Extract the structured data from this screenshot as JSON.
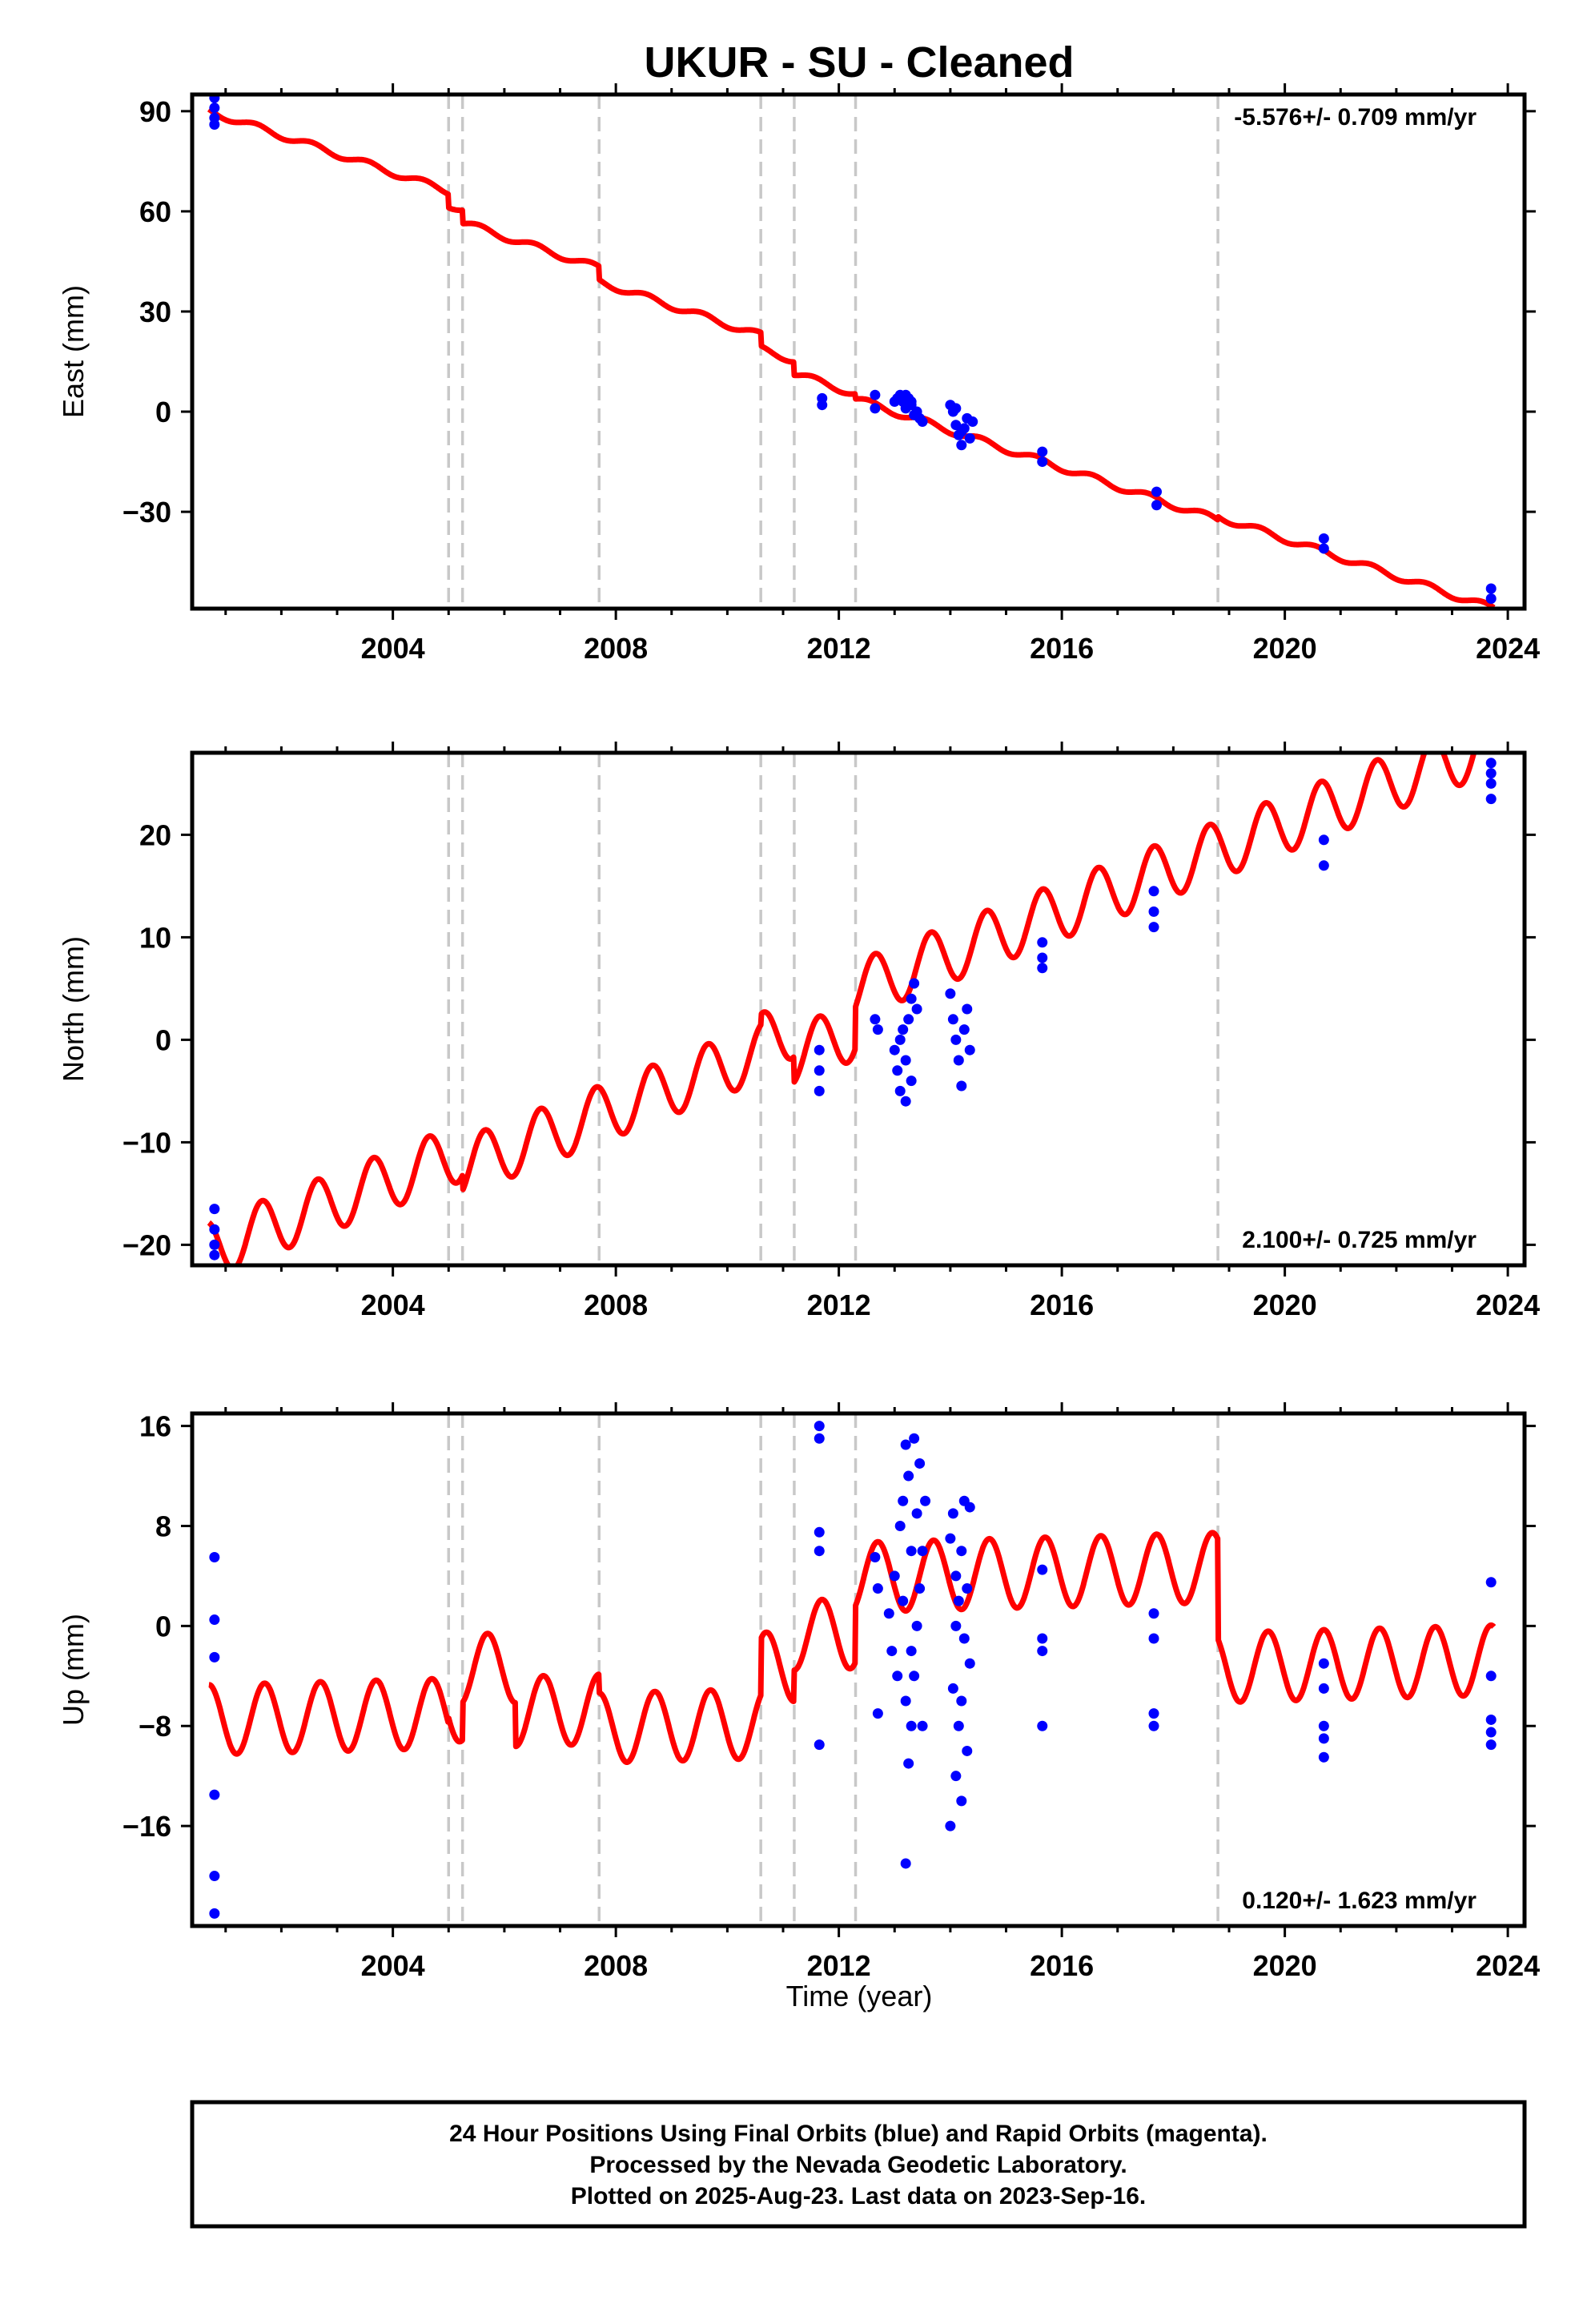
{
  "title": "UKUR  - SU - Cleaned",
  "xlabel": "Time (year)",
  "footer": {
    "line1": "24 Hour Positions Using Final Orbits (blue) and Rapid Orbits (magenta).",
    "line2": "Processed by the Nevada Geodetic Laboratory.",
    "line3": "Plotted on 2025-Aug-23. Last data on 2023-Sep-16."
  },
  "colors": {
    "data": "#0000ff",
    "model": "#ff0000",
    "offset": "#c8c8c8",
    "frame": "#000000"
  },
  "chart_data": [
    {
      "type": "scatter",
      "id": "east",
      "ylabel": "East (mm)",
      "rate": "-5.576+/- 0.709 mm/yr",
      "xlim": [
        2000.4,
        2024.3
      ],
      "ylim": [
        -59,
        95
      ],
      "xticks": [
        2004,
        2008,
        2012,
        2016,
        2020,
        2024
      ],
      "yticks": [
        90,
        60,
        30,
        0,
        -30
      ],
      "ytick_labels": [
        "90",
        "60",
        "30",
        "0",
        "−30"
      ],
      "offsets": [
        2005.0,
        2005.25,
        2007.7,
        2010.6,
        2011.2,
        2012.3,
        2018.8
      ],
      "model": {
        "start": 2000.7,
        "end": 2023.75,
        "v0": 90,
        "rate": -5.576,
        "amp": 1.0,
        "phase": 0.3,
        "steps": [
          [
            2005.0,
            -4.0
          ],
          [
            2005.25,
            -4.0
          ],
          [
            2007.7,
            -4.0
          ],
          [
            2010.6,
            -4.0
          ],
          [
            2011.2,
            -4.0
          ],
          [
            2012.3,
            -1.5
          ],
          [
            2018.8,
            1.0
          ]
        ]
      },
      "points": [
        [
          2000.8,
          94
        ],
        [
          2000.8,
          91
        ],
        [
          2000.8,
          88
        ],
        [
          2000.8,
          86
        ],
        [
          2011.7,
          4
        ],
        [
          2011.7,
          2
        ],
        [
          2012.65,
          5
        ],
        [
          2012.65,
          1
        ],
        [
          2013.0,
          3
        ],
        [
          2013.05,
          4
        ],
        [
          2013.1,
          5
        ],
        [
          2013.15,
          3
        ],
        [
          2013.2,
          1
        ],
        [
          2013.25,
          4
        ],
        [
          2013.3,
          2
        ],
        [
          2013.35,
          -1
        ],
        [
          2013.4,
          0
        ],
        [
          2013.45,
          -2
        ],
        [
          2013.5,
          -3
        ],
        [
          2013.2,
          5
        ],
        [
          2013.3,
          3
        ],
        [
          2014.0,
          2
        ],
        [
          2014.05,
          0
        ],
        [
          2014.1,
          -4
        ],
        [
          2014.15,
          -7
        ],
        [
          2014.2,
          -10
        ],
        [
          2014.25,
          -5
        ],
        [
          2014.3,
          -2
        ],
        [
          2014.35,
          -8
        ],
        [
          2014.4,
          -3
        ],
        [
          2014.1,
          1
        ],
        [
          2014.2,
          -6
        ],
        [
          2015.65,
          -12
        ],
        [
          2015.65,
          -15
        ],
        [
          2017.7,
          -24
        ],
        [
          2017.7,
          -28
        ],
        [
          2020.7,
          -38
        ],
        [
          2020.7,
          -41
        ],
        [
          2023.7,
          -53
        ],
        [
          2023.7,
          -56
        ]
      ]
    },
    {
      "type": "scatter",
      "id": "north",
      "ylabel": "North (mm)",
      "rate": "2.100+/- 0.725 mm/yr",
      "xlim": [
        2000.4,
        2024.3
      ],
      "ylim": [
        -22,
        28
      ],
      "xticks": [
        2004,
        2008,
        2012,
        2016,
        2020,
        2024
      ],
      "yticks": [
        20,
        10,
        0,
        -10,
        -20
      ],
      "ytick_labels": [
        "20",
        "10",
        "0",
        "−10",
        "−20"
      ],
      "offsets": [
        2005.0,
        2005.25,
        2007.7,
        2010.6,
        2011.2,
        2012.3,
        2018.8
      ],
      "model": {
        "start": 2000.7,
        "end": 2023.75,
        "v0": -20.5,
        "rate": 2.1,
        "amp": 2.8,
        "phase": 0.4,
        "steps": [
          [
            2005.0,
            0
          ],
          [
            2005.25,
            -1.5
          ],
          [
            2007.7,
            0
          ],
          [
            2010.6,
            1.0
          ],
          [
            2011.2,
            -2.5
          ],
          [
            2012.3,
            4.0
          ],
          [
            2018.8,
            0
          ]
        ]
      },
      "points": [
        [
          2000.8,
          -16.5
        ],
        [
          2000.8,
          -18.5
        ],
        [
          2000.8,
          -20
        ],
        [
          2000.8,
          -21
        ],
        [
          2011.65,
          -1
        ],
        [
          2011.65,
          -3
        ],
        [
          2011.65,
          -5
        ],
        [
          2012.65,
          2
        ],
        [
          2012.7,
          1
        ],
        [
          2013.0,
          -1
        ],
        [
          2013.05,
          -3
        ],
        [
          2013.1,
          -5
        ],
        [
          2013.15,
          1
        ],
        [
          2013.2,
          -2
        ],
        [
          2013.25,
          2
        ],
        [
          2013.3,
          4
        ],
        [
          2013.35,
          5.5
        ],
        [
          2013.4,
          3
        ],
        [
          2013.2,
          -6
        ],
        [
          2013.1,
          0
        ],
        [
          2013.3,
          -4
        ],
        [
          2014.0,
          4.5
        ],
        [
          2014.05,
          2
        ],
        [
          2014.1,
          0
        ],
        [
          2014.15,
          -2
        ],
        [
          2014.2,
          -4.5
        ],
        [
          2014.25,
          1
        ],
        [
          2014.3,
          3
        ],
        [
          2014.35,
          -1
        ],
        [
          2015.65,
          9.5
        ],
        [
          2015.65,
          8
        ],
        [
          2015.65,
          7
        ],
        [
          2017.65,
          14.5
        ],
        [
          2017.65,
          12.5
        ],
        [
          2017.65,
          11
        ],
        [
          2020.7,
          19.5
        ],
        [
          2020.7,
          17
        ],
        [
          2023.7,
          27
        ],
        [
          2023.7,
          26
        ],
        [
          2023.7,
          25
        ],
        [
          2023.7,
          23.5
        ]
      ]
    },
    {
      "type": "scatter",
      "id": "up",
      "ylabel": "Up (mm)",
      "rate": "0.120+/- 1.623 mm/yr",
      "xlim": [
        2000.4,
        2024.3
      ],
      "ylim": [
        -24,
        17
      ],
      "xticks": [
        2004,
        2008,
        2012,
        2016,
        2020,
        2024
      ],
      "yticks": [
        16,
        8,
        0,
        -8,
        -16
      ],
      "ytick_labels": [
        "16",
        "8",
        "0",
        "−8",
        "−16"
      ],
      "offsets": [
        2005.0,
        2005.25,
        2007.7,
        2010.6,
        2011.2,
        2012.3,
        2018.8
      ],
      "model": {
        "start": 2000.7,
        "end": 2023.75,
        "v0": -7.5,
        "rate": 0.12,
        "amp": 2.8,
        "phase": 0.45,
        "steps": [
          [
            2005.0,
            0.5
          ],
          [
            2005.25,
            3.0
          ],
          [
            2006.2,
            -3.5
          ],
          [
            2007.7,
            -1.5
          ],
          [
            2010.6,
            4.5
          ],
          [
            2011.2,
            2.5
          ],
          [
            2012.3,
            4.5
          ],
          [
            2018.8,
            -8.0
          ]
        ]
      },
      "points": [
        [
          2000.8,
          5.5
        ],
        [
          2000.8,
          0.5
        ],
        [
          2000.8,
          -2.5
        ],
        [
          2000.8,
          -13.5
        ],
        [
          2000.8,
          -20
        ],
        [
          2000.8,
          -23
        ],
        [
          2011.65,
          16
        ],
        [
          2011.65,
          15
        ],
        [
          2011.65,
          7.5
        ],
        [
          2011.65,
          6
        ],
        [
          2011.65,
          -9.5
        ],
        [
          2012.65,
          5.5
        ],
        [
          2012.7,
          3
        ],
        [
          2012.7,
          -7
        ],
        [
          2012.9,
          1
        ],
        [
          2012.95,
          -2
        ],
        [
          2013.0,
          4
        ],
        [
          2013.05,
          -4
        ],
        [
          2013.1,
          8
        ],
        [
          2013.15,
          10
        ],
        [
          2013.2,
          14.5
        ],
        [
          2013.2,
          -6
        ],
        [
          2013.25,
          12
        ],
        [
          2013.25,
          -11
        ],
        [
          2013.3,
          6
        ],
        [
          2013.3,
          -2
        ],
        [
          2013.35,
          15
        ],
        [
          2013.35,
          -4
        ],
        [
          2013.4,
          9
        ],
        [
          2013.4,
          0
        ],
        [
          2013.45,
          13
        ],
        [
          2013.45,
          3
        ],
        [
          2013.5,
          6
        ],
        [
          2013.5,
          -8
        ],
        [
          2013.55,
          10
        ],
        [
          2013.2,
          -19
        ],
        [
          2013.15,
          2
        ],
        [
          2013.3,
          -8
        ],
        [
          2014.0,
          7
        ],
        [
          2014.0,
          -16
        ],
        [
          2014.05,
          9
        ],
        [
          2014.05,
          -5
        ],
        [
          2014.1,
          4
        ],
        [
          2014.1,
          -12
        ],
        [
          2014.15,
          2
        ],
        [
          2014.15,
          -8
        ],
        [
          2014.2,
          6
        ],
        [
          2014.2,
          -14
        ],
        [
          2014.25,
          10
        ],
        [
          2014.25,
          -1
        ],
        [
          2014.3,
          3
        ],
        [
          2014.3,
          -10
        ],
        [
          2014.35,
          9.5
        ],
        [
          2014.35,
          -3
        ],
        [
          2014.2,
          -6
        ],
        [
          2014.1,
          0
        ],
        [
          2015.65,
          4.5
        ],
        [
          2015.65,
          -1
        ],
        [
          2015.65,
          -2
        ],
        [
          2015.65,
          -8
        ],
        [
          2017.65,
          1
        ],
        [
          2017.65,
          -1
        ],
        [
          2017.65,
          -7
        ],
        [
          2017.65,
          -8
        ],
        [
          2020.7,
          -3
        ],
        [
          2020.7,
          -5
        ],
        [
          2020.7,
          -8
        ],
        [
          2020.7,
          -9
        ],
        [
          2020.7,
          -10.5
        ],
        [
          2023.7,
          3.5
        ],
        [
          2023.7,
          -4
        ],
        [
          2023.7,
          -7.5
        ],
        [
          2023.7,
          -8.5
        ],
        [
          2023.7,
          -9.5
        ]
      ]
    }
  ]
}
